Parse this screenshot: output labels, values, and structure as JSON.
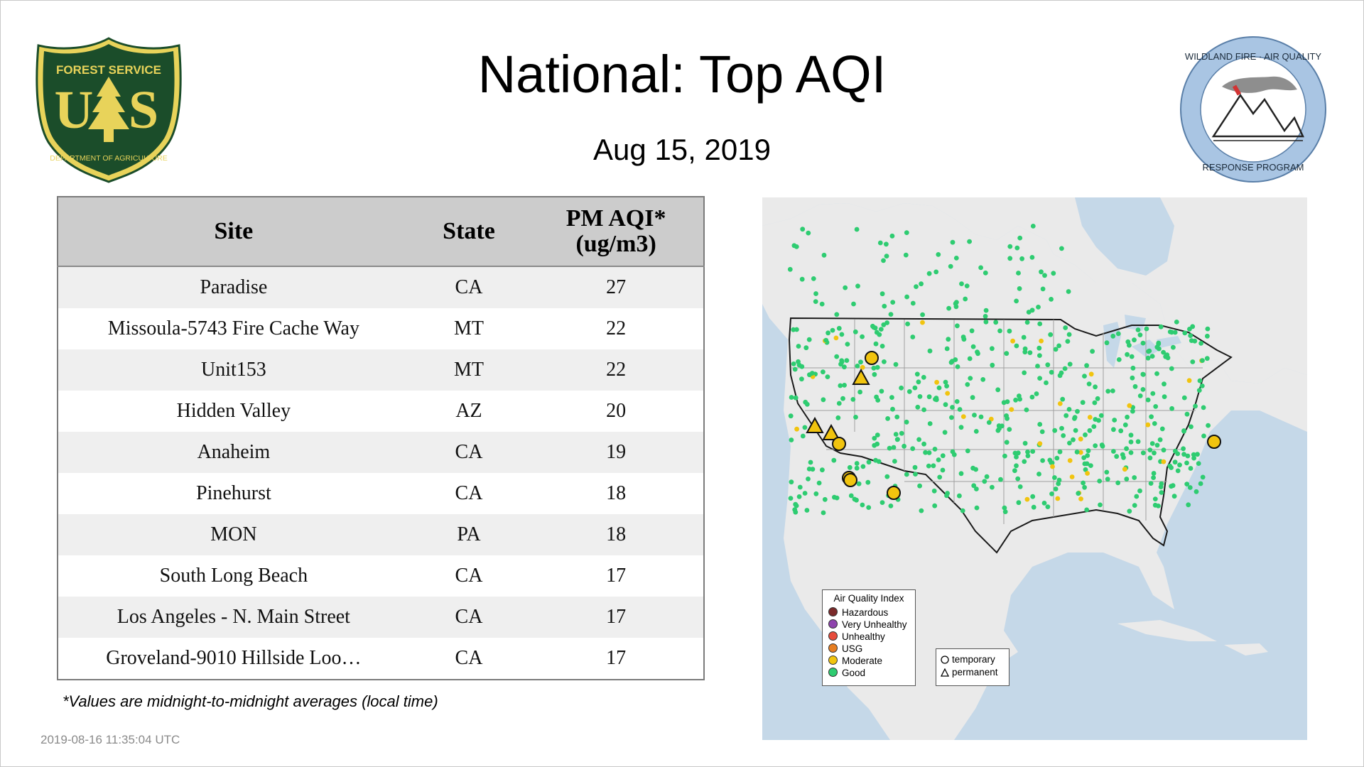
{
  "title": "National: Top AQI",
  "date": "Aug 15, 2019",
  "logos": {
    "usfs": {
      "top_text": "FOREST SERVICE",
      "initials_left": "U",
      "initials_right": "S",
      "bottom_text": "DEPARTMENT OF AGRICULTURE",
      "colors": {
        "green": "#1b4d2a",
        "gold": "#e8d35a"
      }
    },
    "wfar": {
      "top_text": "WILDLAND FIRE · AIR QUALITY",
      "bottom_text": "RESPONSE PROGRAM",
      "ring_color": "#a9c5e3"
    }
  },
  "table": {
    "headers": {
      "site": "Site",
      "state": "State",
      "aqi_line1": "PM AQI*",
      "aqi_line2": "(ug/m3)"
    },
    "rows": [
      {
        "site": "Paradise",
        "state": "CA",
        "aqi": "27"
      },
      {
        "site": "Missoula-5743 Fire Cache Way",
        "state": "MT",
        "aqi": "22"
      },
      {
        "site": "Unit153",
        "state": "MT",
        "aqi": "22"
      },
      {
        "site": "Hidden Valley",
        "state": "AZ",
        "aqi": "20"
      },
      {
        "site": "Anaheim",
        "state": "CA",
        "aqi": "19"
      },
      {
        "site": "Pinehurst",
        "state": "CA",
        "aqi": "18"
      },
      {
        "site": "MON",
        "state": "PA",
        "aqi": "18"
      },
      {
        "site": "South Long Beach",
        "state": "CA",
        "aqi": "17"
      },
      {
        "site": "Los Angeles - N. Main Street",
        "state": "CA",
        "aqi": "17"
      },
      {
        "site": "Groveland-9010 Hillside Loo…",
        "state": "CA",
        "aqi": "17"
      }
    ]
  },
  "footnote": "*Values are midnight-to-midnight averages (local time)",
  "timestamp": "2019-08-16 11:35:04 UTC",
  "map": {
    "colors": {
      "water": "#c5d8e8",
      "land": "#eaeaea",
      "border": "#1a1a1a",
      "state_line": "#a0a0a0",
      "good": "#2ecc71",
      "moderate": "#f1c40f"
    },
    "legend_aqi": {
      "title": "Air Quality Index",
      "items": [
        {
          "label": "Hazardous",
          "color": "#7a2a2a"
        },
        {
          "label": "Very Unhealthy",
          "color": "#8e44ad"
        },
        {
          "label": "Unhealthy",
          "color": "#e74c3c"
        },
        {
          "label": "USG",
          "color": "#e67e22"
        },
        {
          "label": "Moderate",
          "color": "#f1c40f"
        },
        {
          "label": "Good",
          "color": "#2ecc71"
        }
      ]
    },
    "legend_shape": {
      "temporary": "temporary",
      "permanent": "permanent"
    }
  }
}
